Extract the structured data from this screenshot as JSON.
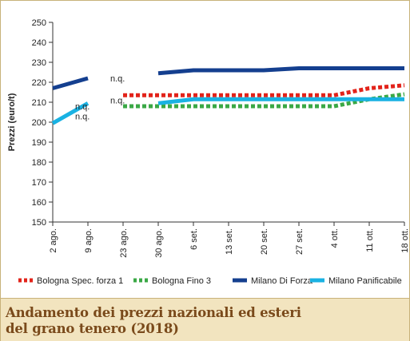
{
  "chart_data": {
    "type": "line",
    "ylabel": "Prezzi (euro/t)",
    "xlabel": "",
    "ylim": [
      150,
      250
    ],
    "yticks": [
      150,
      160,
      170,
      180,
      190,
      200,
      210,
      220,
      230,
      240,
      250
    ],
    "categories": [
      "2 ago.",
      "9 ago.",
      "23 ago.",
      "30 ago.",
      "6 set.",
      "13 set.",
      "20 set.",
      "27 set.",
      "4 ott.",
      "11 ott.",
      "18 ott."
    ],
    "grid": false,
    "legend_position": "bottom",
    "series": [
      {
        "name": "Bologna Spec. forza 1",
        "color": "#e2231a",
        "style": "dotted",
        "values": [
          null,
          null,
          213.5,
          213.5,
          213.5,
          213.5,
          213.5,
          213.5,
          213.5,
          217,
          218.5
        ]
      },
      {
        "name": "Bologna Fino 3",
        "color": "#3aa845",
        "style": "dotted",
        "values": [
          null,
          null,
          208,
          208,
          208,
          208,
          208,
          208,
          208,
          211.5,
          214
        ]
      },
      {
        "name": "Milano Di Forza",
        "color": "#143f8f",
        "style": "solid",
        "values": [
          217,
          222,
          null,
          224.5,
          226,
          226,
          226,
          227,
          227,
          227,
          227
        ]
      },
      {
        "name": "Milano Panificabile",
        "color": "#19b2e3",
        "style": "solid",
        "values": [
          199.5,
          209.5,
          null,
          209.5,
          211.5,
          211.5,
          211.5,
          211.5,
          211.5,
          211.5,
          211.5
        ]
      }
    ],
    "annotations": [
      {
        "text": "n.q.",
        "x": "23 ago.",
        "y": 222
      },
      {
        "text": "n.q.",
        "x": "23 ago.",
        "y": 211
      },
      {
        "text": "n.q.",
        "x": "9 ago.",
        "y": 208
      },
      {
        "text": "n.q.",
        "x": "9 ago.",
        "y": 203
      }
    ]
  },
  "caption": {
    "line1": "Andamento dei prezzi nazionali ed esteri",
    "line2": "del grano tenero (2018)"
  }
}
